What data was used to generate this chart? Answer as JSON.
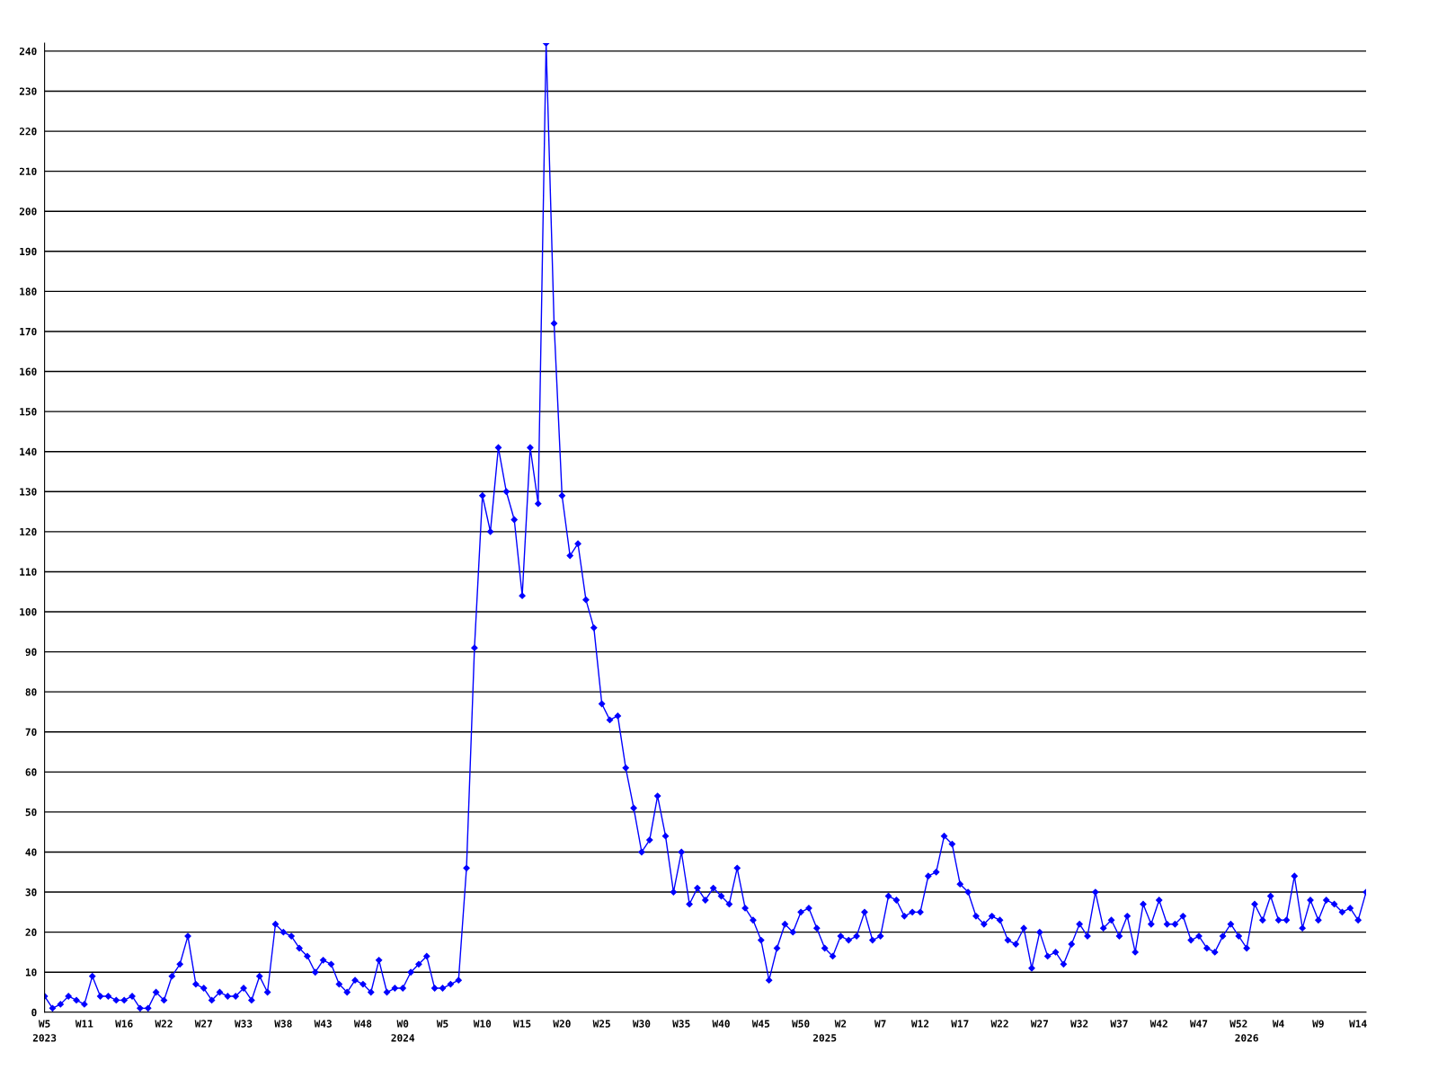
{
  "chart_data": {
    "type": "line",
    "categories": [
      "W5\n2023",
      null,
      null,
      null,
      null,
      "W11",
      null,
      null,
      null,
      null,
      "W16",
      null,
      null,
      null,
      null,
      "W22",
      null,
      null,
      null,
      null,
      "W27",
      null,
      null,
      null,
      null,
      "W33",
      null,
      null,
      null,
      null,
      "W38",
      null,
      null,
      null,
      null,
      "W43",
      null,
      null,
      null,
      null,
      "W48",
      null,
      null,
      null,
      null,
      "W0\n2024",
      null,
      null,
      null,
      null,
      "W5",
      null,
      null,
      null,
      null,
      "W10",
      null,
      null,
      null,
      null,
      "W15",
      null,
      null,
      null,
      null,
      "W20",
      null,
      null,
      null,
      null,
      "W25",
      null,
      null,
      null,
      null,
      "W30",
      null,
      null,
      null,
      null,
      "W35",
      null,
      null,
      null,
      null,
      "W40",
      null,
      null,
      null,
      null,
      "W45",
      null,
      null,
      null,
      null,
      "W50",
      null,
      null,
      "\n2025",
      null,
      "W2",
      null,
      null,
      null,
      null,
      "W7",
      null,
      null,
      null,
      null,
      "W12",
      null,
      null,
      null,
      null,
      "W17",
      null,
      null,
      null,
      null,
      "W22",
      null,
      null,
      null,
      null,
      "W27",
      null,
      null,
      null,
      null,
      "W32",
      null,
      null,
      null,
      null,
      "W37",
      null,
      null,
      null,
      null,
      "W42",
      null,
      null,
      null,
      null,
      "W47",
      null,
      null,
      null,
      null,
      "W52",
      "\n2026",
      null,
      null,
      null,
      "W4",
      null,
      null,
      null,
      null,
      "W9",
      null,
      null,
      null,
      null,
      "W14",
      null
    ],
    "series": [
      {
        "color": "#0000ff",
        "values": [
          4,
          1,
          2,
          4,
          3,
          2,
          9,
          4,
          4,
          3,
          3,
          4,
          1,
          1,
          5,
          3,
          9,
          12,
          19,
          7,
          6,
          3,
          5,
          4,
          4,
          6,
          3,
          9,
          5,
          22,
          20,
          19,
          16,
          14,
          10,
          13,
          12,
          7,
          5,
          8,
          7,
          5,
          13,
          5,
          6,
          6,
          10,
          12,
          14,
          6,
          6,
          7,
          8,
          36,
          91,
          129,
          120,
          141,
          130,
          123,
          104,
          141,
          127,
          242,
          172,
          129,
          114,
          117,
          103,
          96,
          77,
          73,
          74,
          61,
          51,
          40,
          43,
          54,
          44,
          30,
          40,
          27,
          31,
          28,
          31,
          29,
          27,
          36,
          26,
          23,
          18,
          8,
          16,
          22,
          20,
          25,
          26,
          21,
          16,
          14,
          19,
          18,
          19,
          25,
          18,
          19,
          29,
          28,
          24,
          25,
          25,
          34,
          35,
          44,
          42,
          32,
          30,
          24,
          22,
          24,
          23,
          18,
          17,
          21,
          11,
          20,
          14,
          15,
          12,
          17,
          22,
          19,
          30,
          21,
          23,
          19,
          24,
          15,
          27,
          22,
          28,
          22,
          22,
          24,
          18,
          19,
          16,
          15,
          19,
          22,
          19,
          16,
          27,
          23,
          29,
          23,
          23,
          34,
          21,
          28,
          23,
          28,
          27,
          25,
          26,
          23,
          30
        ]
      }
    ],
    "ylim": [
      0,
      242
    ],
    "yticks": [
      0,
      10,
      20,
      30,
      40,
      50,
      60,
      70,
      80,
      90,
      100,
      110,
      120,
      130,
      140,
      150,
      160,
      170,
      180,
      190,
      200,
      210,
      220,
      230,
      240
    ],
    "grid": "y",
    "marker": "diamond",
    "line_style": "solid",
    "legend": false
  }
}
